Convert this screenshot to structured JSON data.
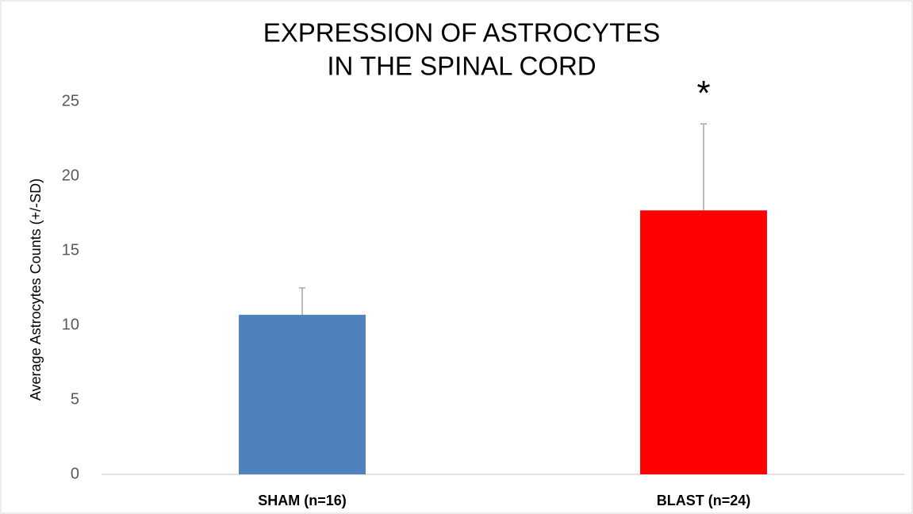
{
  "chart_data": {
    "type": "bar",
    "title": [
      "EXPRESSION OF ASTROCYTES",
      "IN THE SPINAL CORD"
    ],
    "y_label": "Average Astrocytes Counts (+/-SD)",
    "categories": [
      "SHAM (n=16)",
      "BLAST (n=24)"
    ],
    "values": [
      10.7,
      17.7
    ],
    "errors": [
      1.8,
      5.8
    ],
    "colors": [
      "#4f81bd",
      "#ff0000"
    ],
    "annotation": "*",
    "ylim": [
      0,
      25
    ],
    "yticks": [
      0,
      5,
      10,
      15,
      20,
      25
    ],
    "grid": false
  }
}
